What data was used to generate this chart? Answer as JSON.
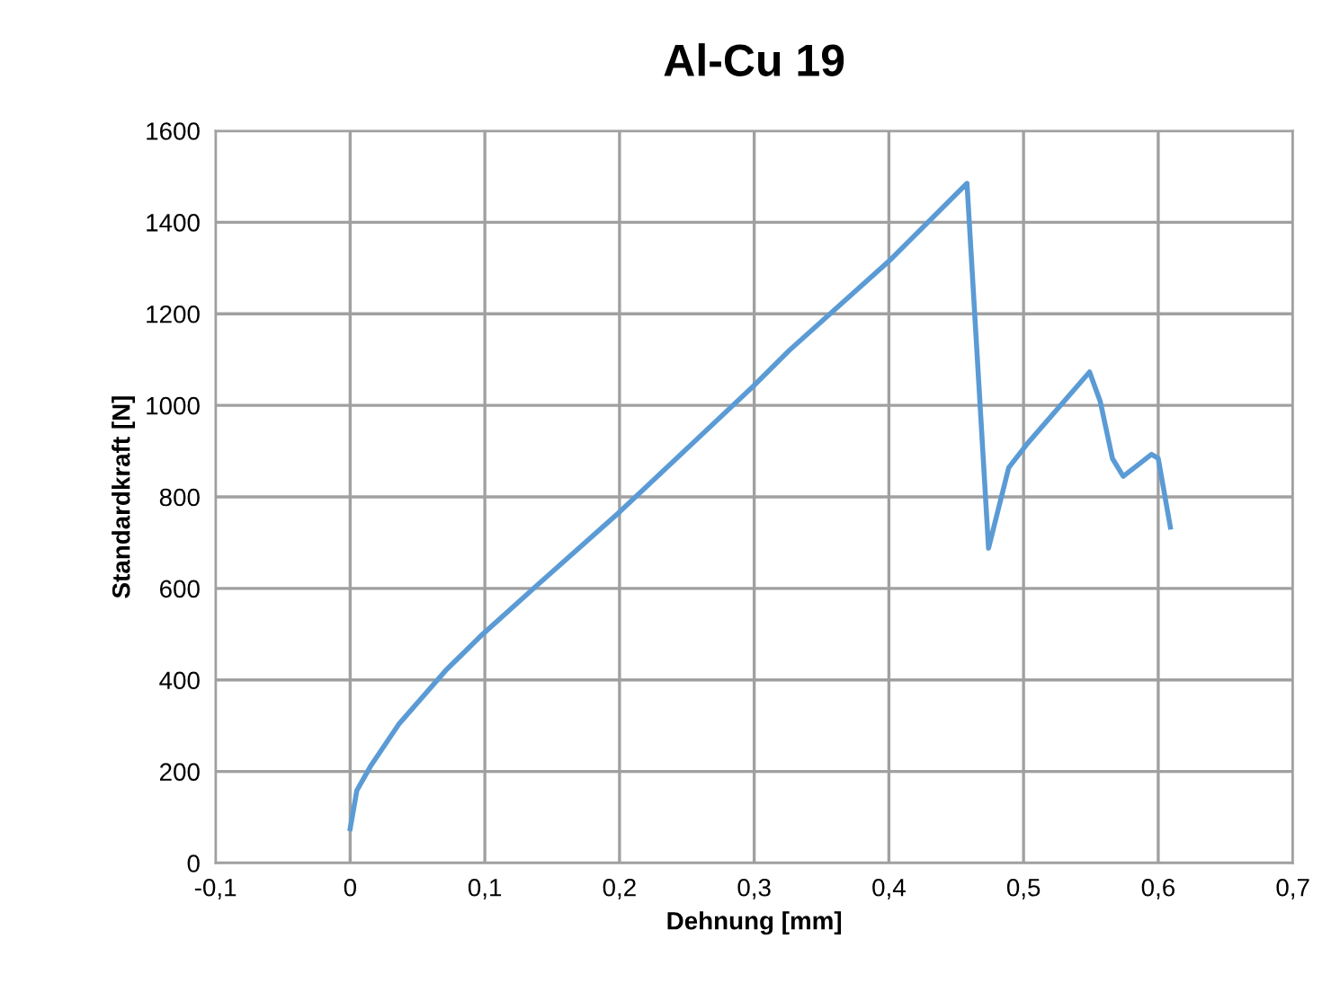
{
  "chart_data": {
    "type": "line",
    "title": "Al-Cu 19",
    "xlabel": "Dehnung [mm]",
    "ylabel": "Standardkraft [N]",
    "xlim": [
      -0.1,
      0.7
    ],
    "xticks": [
      {
        "value": -0.1,
        "label": "-0,1"
      },
      0,
      {
        "value": 0.1,
        "label": "0,1"
      },
      {
        "value": 0.2,
        "label": "0,2"
      },
      {
        "value": 0.3,
        "label": "0,3"
      },
      {
        "value": 0.4,
        "label": "0,4"
      },
      {
        "value": 0.5,
        "label": "0,5"
      },
      {
        "value": 0.6,
        "label": "0,6"
      },
      {
        "value": 0.7,
        "label": "0,7"
      }
    ],
    "ylim": [
      0,
      1600
    ],
    "yticks": [
      0,
      200,
      400,
      600,
      800,
      1000,
      1200,
      1400,
      1600
    ],
    "grid": true,
    "line_style": "solid",
    "marker": "none",
    "series": [
      {
        "color": "#5b9bd5",
        "x": [
          0.0,
          0.005,
          0.015,
          0.036,
          0.071,
          0.098,
          0.14,
          0.2,
          0.299,
          0.326,
          0.4,
          0.458,
          0.474,
          0.489,
          0.503,
          0.549,
          0.557,
          0.566,
          0.574,
          0.595,
          0.6,
          0.609
        ],
        "values": [
          75,
          159,
          211,
          303,
          421,
          499,
          610,
          767,
          1041,
          1120,
          1315,
          1485,
          688,
          864,
          917,
          1073,
          1008,
          884,
          845,
          893,
          884,
          734
        ]
      }
    ]
  }
}
